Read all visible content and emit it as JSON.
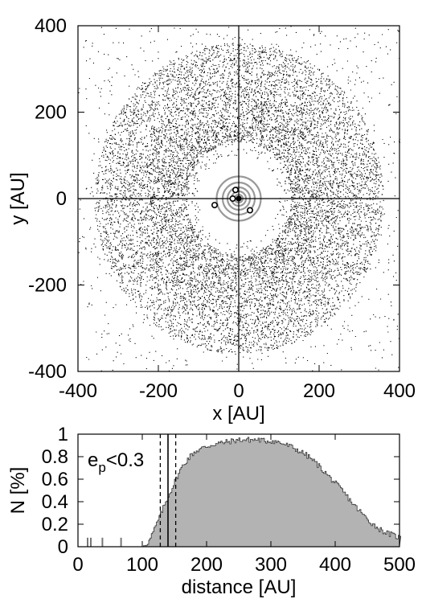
{
  "chart_data": [
    {
      "type": "scatter",
      "xlabel": "x [AU]",
      "ylabel": "y [AU]",
      "xlim": [
        -400,
        400
      ],
      "ylim": [
        -400,
        400
      ],
      "xticks": [
        "-400",
        "-200",
        "0",
        "200",
        "400"
      ],
      "yticks": [
        "400",
        "200",
        "0",
        "-200",
        "-400"
      ],
      "disk": {
        "inner_radius": 100,
        "outer_radius": 420,
        "dense_inner": 130,
        "dense_outer": 300,
        "point_count": 26000
      },
      "inner_halo_radius": 105,
      "grey_circles_radii": [
        10,
        18,
        28,
        40,
        55
      ],
      "open_markers": [
        {
          "x": -8,
          "y": 20
        },
        {
          "x": -15,
          "y": 0
        },
        {
          "x": -60,
          "y": -15
        },
        {
          "x": 28,
          "y": -27
        }
      ],
      "central_marker": {
        "x": 0,
        "y": 0
      },
      "crosshair": true
    },
    {
      "type": "area",
      "xlabel": "distance [AU]",
      "ylabel": "N [%]",
      "xlim": [
        0,
        500
      ],
      "ylim": [
        0,
        1
      ],
      "xticks": [
        "0",
        "100",
        "200",
        "300",
        "400",
        "500"
      ],
      "yticks": [
        "1",
        "0.8",
        "0.6",
        "0.4",
        "0.2",
        "0"
      ],
      "annotation": "e",
      "annotation_sub": "p",
      "annotation_rest": "<0.3",
      "spikes": [
        {
          "x": 15,
          "y": 0.08
        },
        {
          "x": 20,
          "y": 0.08
        },
        {
          "x": 38,
          "y": 0.08
        },
        {
          "x": 67,
          "y": 0.08
        }
      ],
      "profile_x": [
        100,
        110,
        120,
        130,
        140,
        150,
        160,
        170,
        180,
        190,
        200,
        210,
        220,
        230,
        240,
        250,
        260,
        270,
        280,
        290,
        300,
        310,
        320,
        330,
        340,
        350,
        360,
        370,
        380,
        390,
        400,
        410,
        420,
        430,
        440,
        450,
        460,
        470,
        480,
        490,
        500
      ],
      "profile_y": [
        0.0,
        0.05,
        0.18,
        0.32,
        0.45,
        0.58,
        0.7,
        0.78,
        0.84,
        0.87,
        0.89,
        0.91,
        0.92,
        0.93,
        0.94,
        0.95,
        0.95,
        0.95,
        0.95,
        0.94,
        0.94,
        0.93,
        0.91,
        0.89,
        0.86,
        0.83,
        0.79,
        0.74,
        0.68,
        0.62,
        0.56,
        0.5,
        0.43,
        0.36,
        0.3,
        0.24,
        0.19,
        0.15,
        0.12,
        0.1,
        0.08
      ],
      "dashed_lines_x": [
        128,
        152
      ],
      "solid_line_x": 140
    }
  ]
}
